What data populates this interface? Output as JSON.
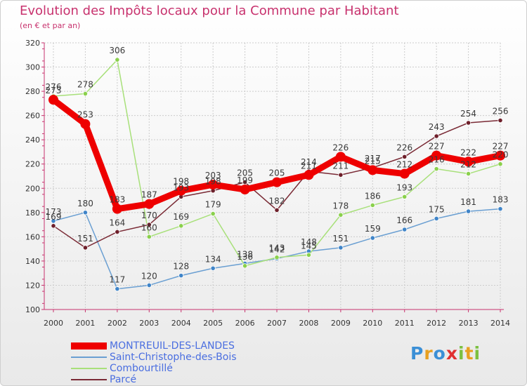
{
  "title": "Evolution des Impôts locaux pour la Commune par Habitant",
  "subtitle": "(en € et par an)",
  "logo": "Proxiti",
  "chart_data": {
    "type": "line",
    "title": "Evolution des Impôts locaux pour la Commune par Habitant",
    "subtitle": "(en € et par an)",
    "xlabel": "",
    "ylabel": "",
    "ylim": [
      100,
      320
    ],
    "yticks": [
      100,
      120,
      140,
      160,
      180,
      200,
      220,
      240,
      260,
      280,
      300,
      320
    ],
    "grid": true,
    "legend_position": "bottom-left",
    "categories": [
      "2000",
      "2001",
      "2002",
      "2003",
      "2004",
      "2005",
      "2006",
      "2007",
      "2008",
      "2009",
      "2010",
      "2011",
      "2012",
      "2013",
      "2014"
    ],
    "series": [
      {
        "name": "Saint-Christophe-des-Bois",
        "color": "#6a9fd2",
        "marker": "#3f84c8",
        "values": [
          173,
          180,
          117,
          120,
          128,
          134,
          138,
          142,
          148,
          151,
          159,
          166,
          175,
          181,
          183
        ]
      },
      {
        "name": "Combourtillé",
        "color": "#a8e07a",
        "marker": "#8ad04c",
        "values": [
          276,
          278,
          306,
          160,
          169,
          179,
          136,
          143,
          145,
          178,
          186,
          193,
          216,
          212,
          220
        ]
      },
      {
        "name": "Parcé",
        "color": "#7a2a35",
        "marker": "#6e1f2a",
        "values": [
          169,
          151,
          164,
          170,
          193,
          198,
          205,
          182,
          214,
          211,
          217,
          226,
          243,
          254,
          256
        ]
      },
      {
        "name": "MONTREUIL-DES-LANDES",
        "color": "#ee0000",
        "marker": "#ee0000",
        "values": [
          273,
          253,
          183,
          187,
          198,
          203,
          199,
          205,
          211,
          226,
          215,
          212,
          227,
          222,
          227
        ]
      }
    ]
  }
}
